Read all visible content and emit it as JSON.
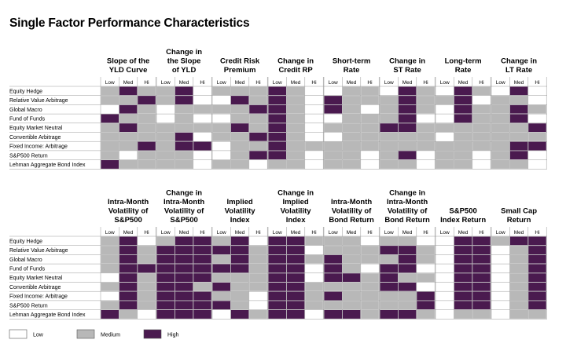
{
  "chart_data": {
    "type": "heatmap",
    "title": "Single Factor Performance Characteristics",
    "levels": [
      "Low",
      "Med",
      "Hi"
    ],
    "level_legend": [
      {
        "code": 0,
        "label": "Low",
        "color": "#ffffff"
      },
      {
        "code": 1,
        "label": "Medium",
        "color": "#b8b8b8"
      },
      {
        "code": 2,
        "label": "High",
        "color": "#4a1a4f"
      }
    ],
    "rows": [
      "Equity Hedge",
      "Relative Value Arbitrage",
      "Global Macro",
      "Fund of Funds",
      "Equity Market Neutral",
      "Convertible Arbitrage",
      "Fixed Income: Arbitrage",
      "S&P500 Return",
      "Lehman Aggregate Bond Index"
    ],
    "panels": [
      {
        "factors": [
          {
            "title": [
              "Slope of the",
              "YLD Curve"
            ],
            "values": [
              [
                1,
                2,
                1
              ],
              [
                1,
                1,
                2
              ],
              [
                0,
                2,
                1
              ],
              [
                2,
                1,
                1
              ],
              [
                1,
                2,
                1
              ],
              [
                1,
                1,
                1
              ],
              [
                1,
                1,
                2
              ],
              [
                1,
                0,
                1
              ],
              [
                2,
                1,
                1
              ]
            ]
          },
          {
            "title": [
              "Change in",
              "the Slope",
              "of YLD"
            ],
            "values": [
              [
                1,
                2,
                0
              ],
              [
                1,
                2,
                0
              ],
              [
                0,
                1,
                1
              ],
              [
                0,
                1,
                0
              ],
              [
                1,
                1,
                1
              ],
              [
                1,
                2,
                0
              ],
              [
                1,
                2,
                2
              ],
              [
                1,
                1,
                0
              ],
              [
                1,
                1,
                0
              ]
            ]
          },
          {
            "title": [
              "Credit Risk",
              "Premium"
            ],
            "values": [
              [
                1,
                1,
                1
              ],
              [
                0,
                2,
                1
              ],
              [
                1,
                1,
                2
              ],
              [
                0,
                1,
                1
              ],
              [
                1,
                2,
                1
              ],
              [
                1,
                1,
                2
              ],
              [
                0,
                1,
                1
              ],
              [
                0,
                1,
                2
              ],
              [
                1,
                1,
                0
              ]
            ]
          },
          {
            "title": [
              "Change in",
              "Credit RP"
            ],
            "values": [
              [
                2,
                1,
                0
              ],
              [
                2,
                1,
                0
              ],
              [
                2,
                1,
                0
              ],
              [
                2,
                1,
                0
              ],
              [
                2,
                1,
                0
              ],
              [
                2,
                1,
                0
              ],
              [
                2,
                1,
                1
              ],
              [
                2,
                1,
                0
              ],
              [
                1,
                1,
                0
              ]
            ]
          },
          {
            "title": [
              "Short-term",
              "Rate"
            ],
            "values": [
              [
                0,
                1,
                1
              ],
              [
                2,
                1,
                1
              ],
              [
                2,
                1,
                0
              ],
              [
                0,
                1,
                1
              ],
              [
                1,
                1,
                1
              ],
              [
                0,
                1,
                1
              ],
              [
                1,
                1,
                1
              ],
              [
                1,
                1,
                0
              ],
              [
                1,
                1,
                0
              ]
            ]
          },
          {
            "title": [
              "Change in",
              "ST Rate"
            ],
            "values": [
              [
                0,
                2,
                1
              ],
              [
                1,
                2,
                1
              ],
              [
                1,
                2,
                1
              ],
              [
                1,
                2,
                0
              ],
              [
                2,
                2,
                1
              ],
              [
                1,
                1,
                1
              ],
              [
                1,
                1,
                1
              ],
              [
                1,
                2,
                0
              ],
              [
                1,
                1,
                0
              ]
            ]
          },
          {
            "title": [
              "Long-term",
              "Rate"
            ],
            "values": [
              [
                0,
                2,
                1
              ],
              [
                1,
                2,
                0
              ],
              [
                0,
                2,
                1
              ],
              [
                0,
                2,
                1
              ],
              [
                1,
                1,
                1
              ],
              [
                0,
                1,
                1
              ],
              [
                1,
                1,
                1
              ],
              [
                1,
                1,
                0
              ],
              [
                1,
                1,
                0
              ]
            ]
          },
          {
            "title": [
              "Change in",
              "LT Rate"
            ],
            "values": [
              [
                0,
                2,
                0
              ],
              [
                1,
                1,
                0
              ],
              [
                1,
                2,
                1
              ],
              [
                1,
                2,
                0
              ],
              [
                1,
                1,
                2
              ],
              [
                1,
                1,
                1
              ],
              [
                1,
                2,
                2
              ],
              [
                1,
                2,
                0
              ],
              [
                1,
                1,
                0
              ]
            ]
          }
        ]
      },
      {
        "factors": [
          {
            "title": [
              "Intra-Month",
              "Volatility of",
              "S&P500"
            ],
            "values": [
              [
                1,
                2,
                0
              ],
              [
                1,
                2,
                1
              ],
              [
                1,
                2,
                1
              ],
              [
                1,
                2,
                2
              ],
              [
                0,
                2,
                1
              ],
              [
                1,
                2,
                1
              ],
              [
                0,
                2,
                1
              ],
              [
                1,
                2,
                1
              ],
              [
                2,
                1,
                0
              ]
            ]
          },
          {
            "title": [
              "Change in",
              "Intra-Month",
              "Volatility of",
              "S&P500"
            ],
            "values": [
              [
                1,
                2,
                2
              ],
              [
                2,
                2,
                2
              ],
              [
                2,
                2,
                2
              ],
              [
                2,
                2,
                2
              ],
              [
                2,
                2,
                2
              ],
              [
                2,
                2,
                1
              ],
              [
                2,
                2,
                2
              ],
              [
                2,
                2,
                2
              ],
              [
                2,
                2,
                2
              ]
            ]
          },
          {
            "title": [
              "Implied",
              "Volatility",
              "Index"
            ],
            "values": [
              [
                1,
                2,
                0
              ],
              [
                2,
                2,
                1
              ],
              [
                1,
                2,
                1
              ],
              [
                2,
                2,
                1
              ],
              [
                1,
                1,
                1
              ],
              [
                2,
                1,
                1
              ],
              [
                1,
                1,
                0
              ],
              [
                2,
                1,
                0
              ],
              [
                0,
                2,
                1
              ]
            ]
          },
          {
            "title": [
              "Change in",
              "Implied",
              "Volatility",
              "Index"
            ],
            "values": [
              [
                2,
                2,
                1
              ],
              [
                2,
                2,
                0
              ],
              [
                2,
                2,
                1
              ],
              [
                2,
                2,
                0
              ],
              [
                2,
                2,
                0
              ],
              [
                2,
                2,
                1
              ],
              [
                2,
                2,
                1
              ],
              [
                2,
                2,
                1
              ],
              [
                2,
                2,
                0
              ]
            ]
          },
          {
            "title": [
              "Intra-Month",
              "Volatility of",
              "Bond Return"
            ],
            "values": [
              [
                1,
                1,
                0
              ],
              [
                1,
                1,
                1
              ],
              [
                2,
                1,
                1
              ],
              [
                2,
                1,
                0
              ],
              [
                2,
                2,
                1
              ],
              [
                1,
                1,
                1
              ],
              [
                2,
                1,
                1
              ],
              [
                1,
                1,
                1
              ],
              [
                2,
                2,
                1
              ]
            ]
          },
          {
            "title": [
              "Change in",
              "Intra-Month",
              "Volatility of",
              "Bond Return"
            ],
            "values": [
              [
                1,
                1,
                0
              ],
              [
                2,
                2,
                1
              ],
              [
                1,
                2,
                1
              ],
              [
                2,
                2,
                0
              ],
              [
                2,
                1,
                1
              ],
              [
                2,
                2,
                0
              ],
              [
                1,
                1,
                2
              ],
              [
                1,
                1,
                2
              ],
              [
                2,
                2,
                1
              ]
            ]
          },
          {
            "title": [
              "S&P500",
              "Index Return"
            ],
            "values": [
              [
                0,
                2,
                2
              ],
              [
                0,
                2,
                2
              ],
              [
                0,
                2,
                2
              ],
              [
                0,
                2,
                2
              ],
              [
                0,
                2,
                2
              ],
              [
                0,
                2,
                2
              ],
              [
                0,
                2,
                2
              ],
              [
                0,
                2,
                2
              ],
              [
                0,
                1,
                1
              ]
            ]
          },
          {
            "title": [
              "Small Cap",
              "Return"
            ],
            "values": [
              [
                1,
                2,
                2
              ],
              [
                0,
                1,
                2
              ],
              [
                0,
                1,
                2
              ],
              [
                0,
                1,
                2
              ],
              [
                0,
                1,
                2
              ],
              [
                0,
                1,
                2
              ],
              [
                0,
                1,
                2
              ],
              [
                0,
                1,
                2
              ],
              [
                0,
                1,
                1
              ]
            ]
          }
        ]
      }
    ]
  }
}
